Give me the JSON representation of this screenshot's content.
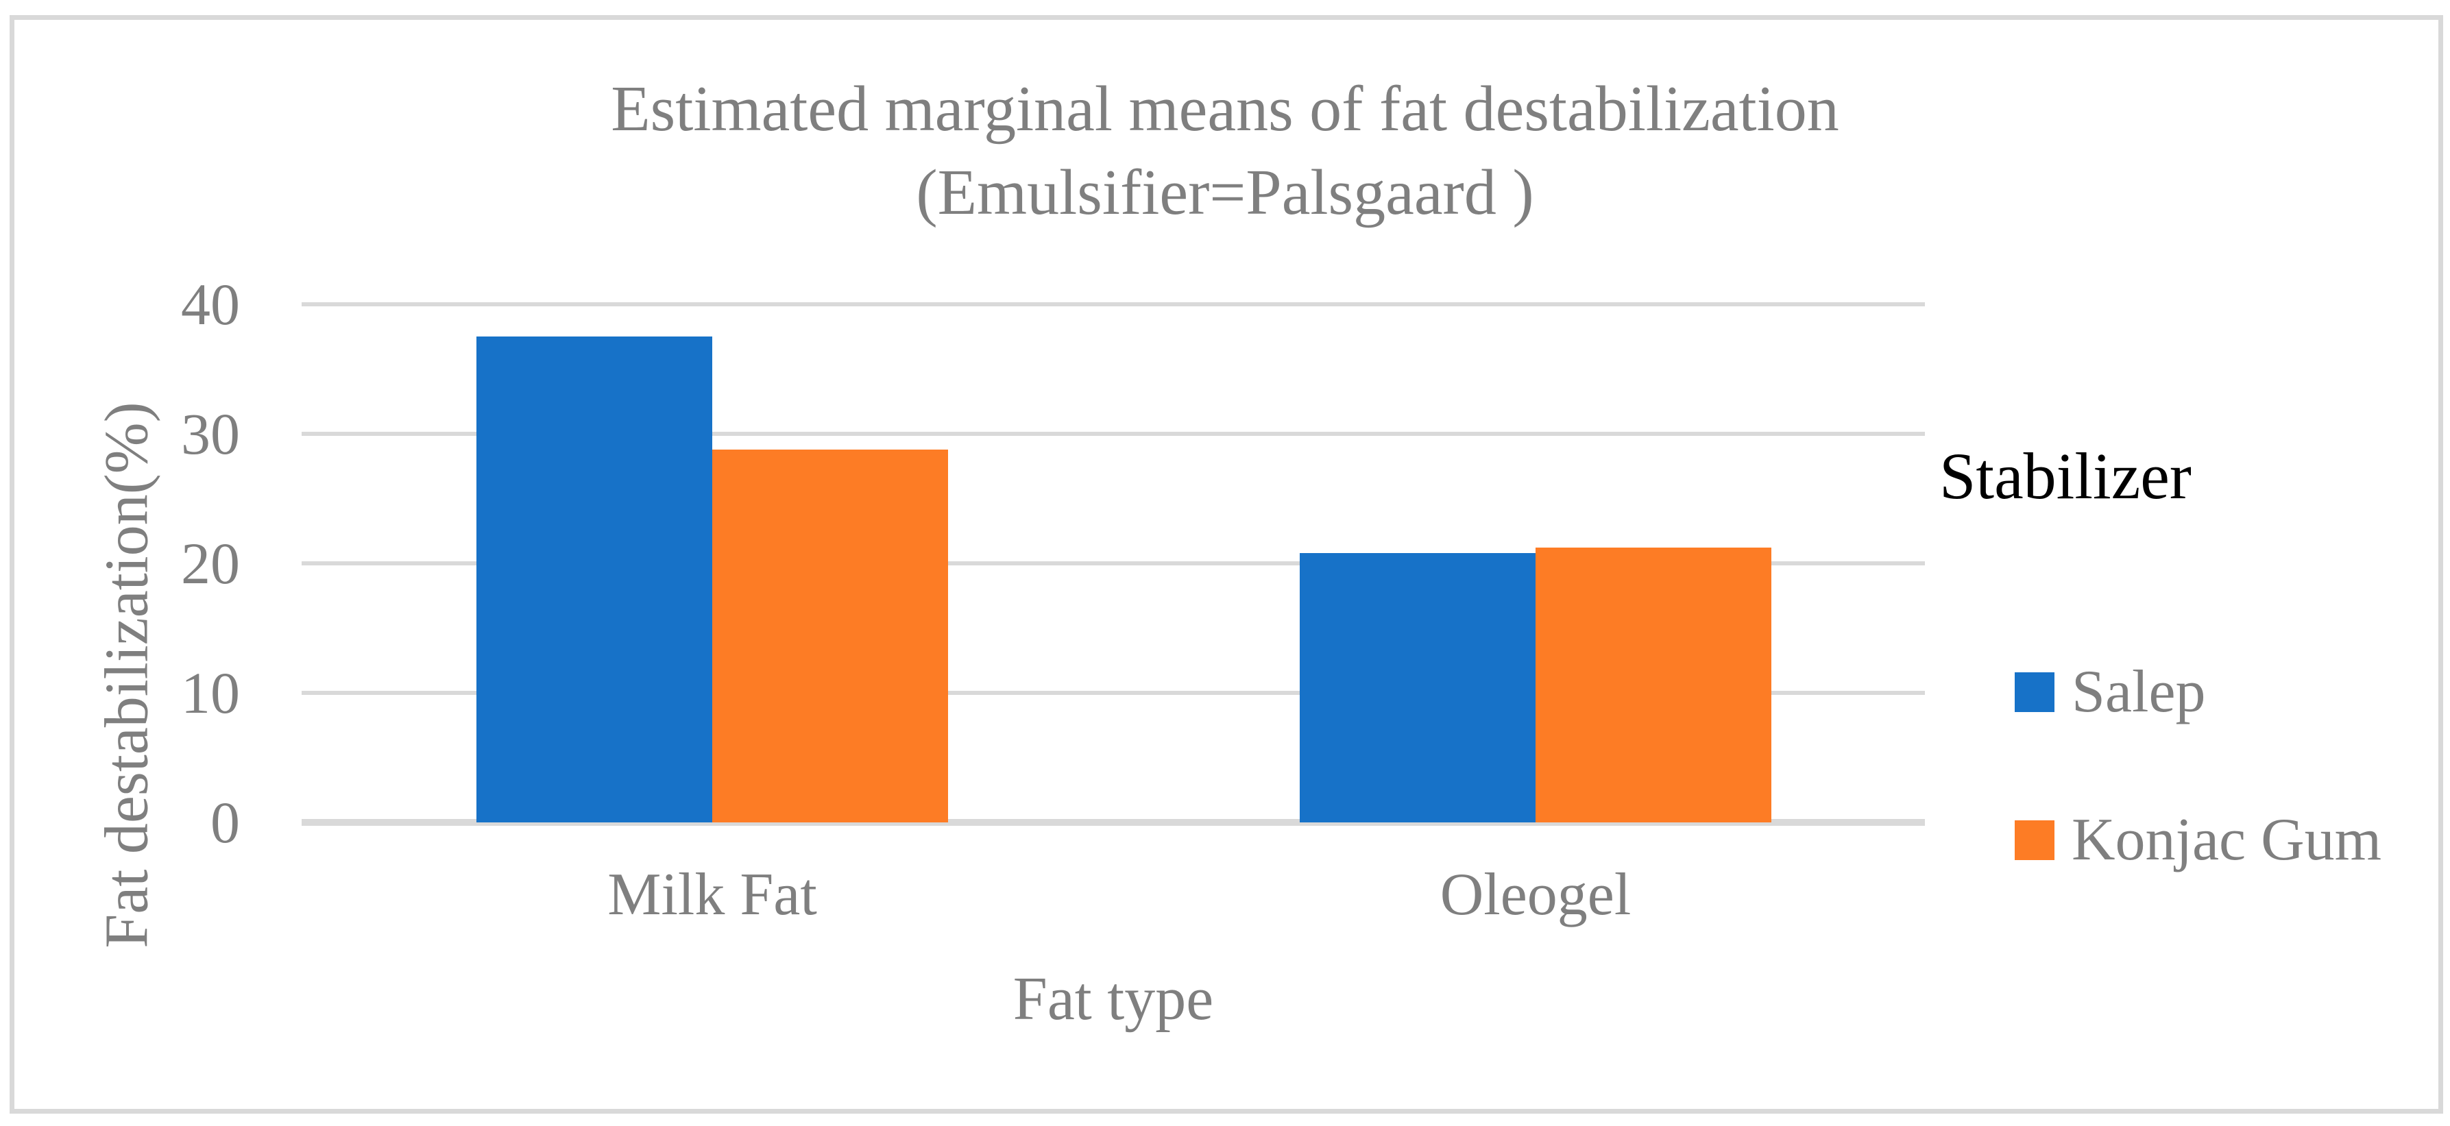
{
  "chart_data": {
    "type": "bar",
    "title": "Estimated marginal means of fat destabilization",
    "subtitle": "(Emulsifier=Palsgaard )",
    "categories": [
      "Milk Fat",
      "Oleogel"
    ],
    "series": [
      {
        "name": "Salep",
        "color": "#1772C8",
        "values": [
          37.5,
          20.8
        ]
      },
      {
        "name": "Konjac Gum",
        "color": "#FD7C25",
        "values": [
          28.8,
          21.2
        ]
      }
    ],
    "xlabel": "Fat type",
    "ylabel": "Fat destabilization(%)",
    "ylim": [
      0,
      40
    ],
    "yticks": [
      0,
      10,
      20,
      30,
      40
    ],
    "grid": true,
    "legend_title": "Stabilizer",
    "legend_position": "right-outside"
  },
  "colors": {
    "gridline": "#D9D9D9",
    "frame_border": "#D9D9D9",
    "text_gray": "#7F7F7F",
    "legend_title_text": "#000000",
    "background": "#FFFFFF"
  }
}
